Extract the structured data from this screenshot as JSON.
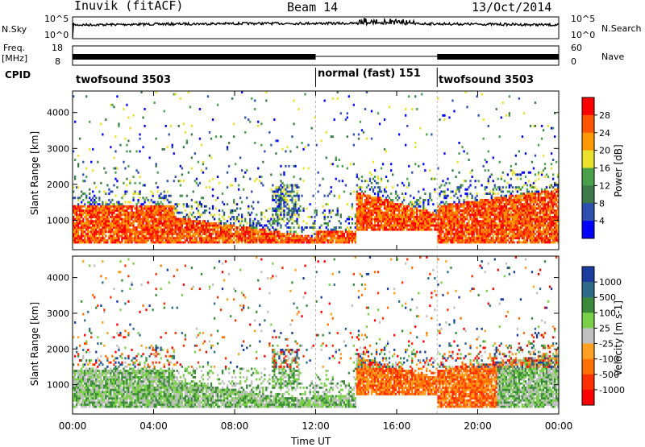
{
  "header": {
    "station": "Inuvik (fitACF)",
    "beam": "Beam 14",
    "date": "13/Oct/2014"
  },
  "noise_panel": {
    "left_label": "N.Sky",
    "right_label": "N.Search",
    "left_ticks": [
      "10^5",
      "10^0"
    ],
    "right_ticks": [
      "10^5",
      "10^0"
    ]
  },
  "freq_panel": {
    "left_label_1": "Freq.",
    "left_label_2": "[MHz]",
    "right_label": "Nave",
    "left_ticks": [
      "18",
      "8"
    ],
    "right_ticks": [
      "60",
      "0"
    ]
  },
  "cpid_panel": {
    "label": "CPID",
    "segments": [
      {
        "name": "twofsound 3503",
        "start_hour": 0,
        "end_hour": 12
      },
      {
        "name": "normal (fast) 151",
        "start_hour": 12,
        "end_hour": 18
      },
      {
        "name": "twofsound 3503",
        "start_hour": 18,
        "end_hour": 24
      }
    ]
  },
  "chart_data": [
    {
      "type": "heatmap",
      "name": "power",
      "xlabel": "",
      "ylabel": "Slant Range [km]",
      "x_range_hours": [
        0,
        24
      ],
      "ylim": [
        180,
        4600
      ],
      "yticks": [
        1000,
        2000,
        3000,
        4000
      ],
      "colorbar": {
        "label": "Power [dB]",
        "ticks": [
          "4",
          "8",
          "12",
          "16",
          "20",
          "24",
          "28"
        ],
        "colors": [
          "#0000ff",
          "#2d4fb0",
          "#3d7a4a",
          "#4aa04a",
          "#e8e22a",
          "#ff9900",
          "#ff5500",
          "#ff0000"
        ]
      }
    },
    {
      "type": "heatmap",
      "name": "velocity",
      "xlabel": "Time UT",
      "ylabel": "Slant Range [km]",
      "x_range_hours": [
        0,
        24
      ],
      "xticks": [
        "00:00",
        "04:00",
        "08:00",
        "12:00",
        "16:00",
        "20:00",
        "00:00"
      ],
      "ylim": [
        180,
        4600
      ],
      "yticks": [
        1000,
        2000,
        3000,
        4000
      ],
      "colorbar": {
        "label": "Velocity [m s-1]",
        "ticks": [
          "1000",
          "500",
          "100",
          "25",
          "-25",
          "-100",
          "-500",
          "-1000"
        ],
        "colors": [
          "#1a3c9e",
          "#2e6b8a",
          "#3a8a3a",
          "#7ad147",
          "#c0c0c0",
          "#ffa020",
          "#ff7000",
          "#ff3000",
          "#ff0000"
        ]
      }
    }
  ]
}
